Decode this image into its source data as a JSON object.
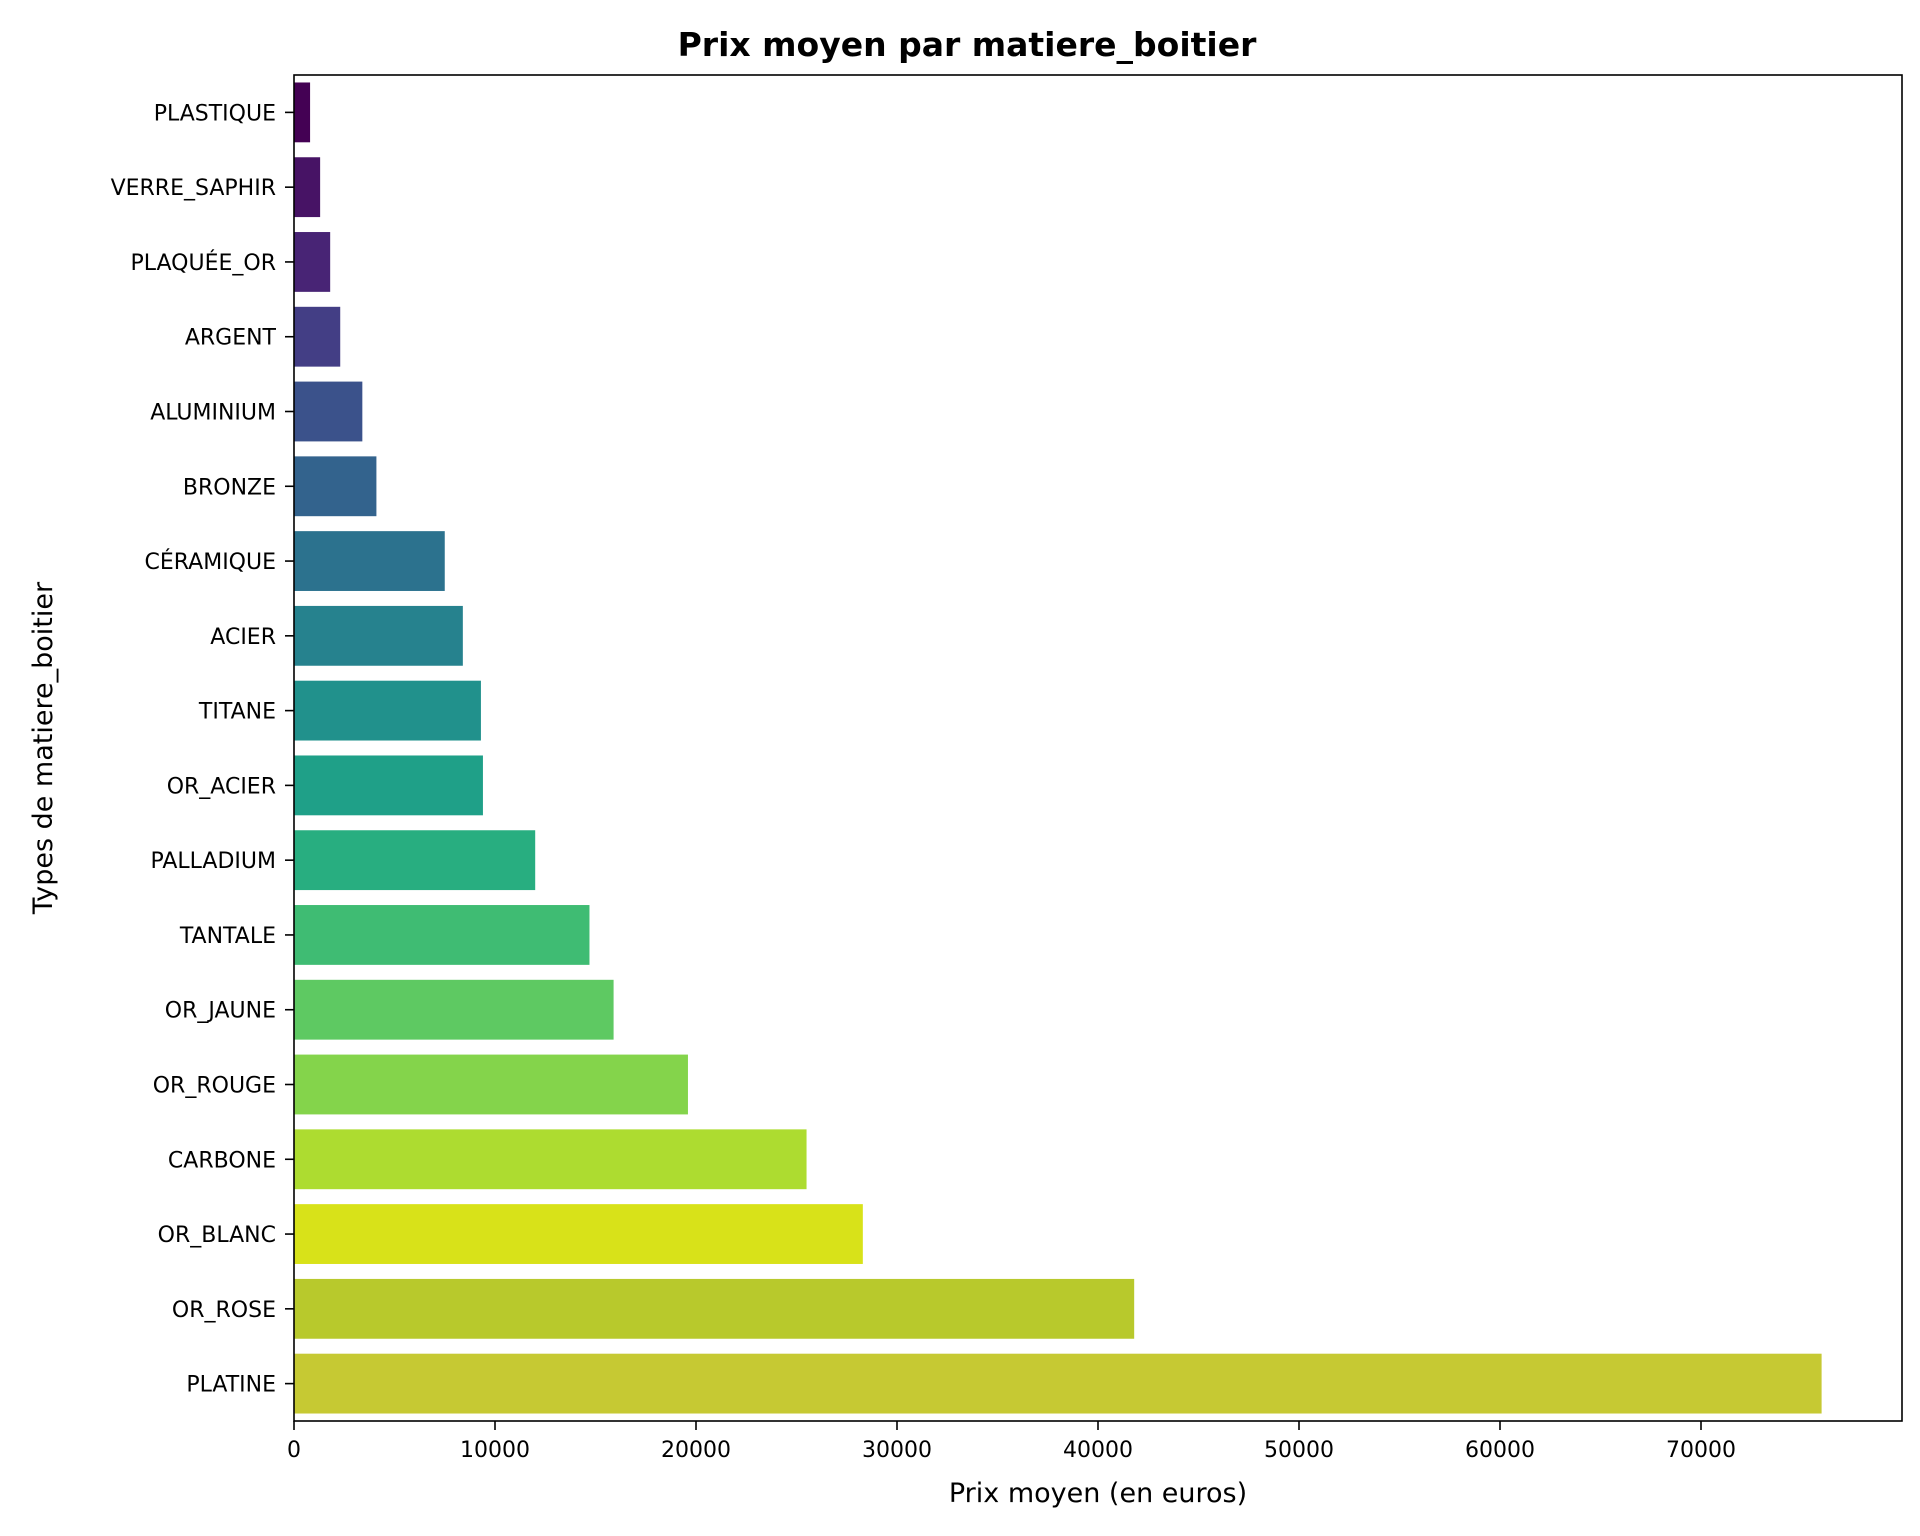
{
  "chart_data": {
    "type": "bar",
    "orientation": "horizontal",
    "title": "Prix moyen par matiere_boitier",
    "xlabel": "Prix moyen (en euros)",
    "ylabel": "Types de matiere_boitier",
    "xlim": [
      0,
      80000
    ],
    "xticks": [
      0,
      10000,
      20000,
      30000,
      40000,
      50000,
      60000,
      70000
    ],
    "grid": false,
    "categories": [
      "PLASTIQUE",
      "VERRE_SAPHIR",
      "PLAQUÉE_OR",
      "ARGENT",
      "ALUMINIUM",
      "BRONZE",
      "CÉRAMIQUE",
      "ACIER",
      "TITANE",
      "OR_ACIER",
      "PALLADIUM",
      "TANTALE",
      "OR_JAUNE",
      "OR_ROUGE",
      "CARBONE",
      "OR_BLANC",
      "OR_ROSE",
      "PLATINE"
    ],
    "values": [
      800,
      1300,
      1800,
      2300,
      3400,
      4100,
      7500,
      8400,
      9300,
      9400,
      12000,
      14700,
      15900,
      19600,
      25500,
      28300,
      41800,
      76000
    ],
    "colors": [
      "#440154",
      "#471365",
      "#482475",
      "#433e85",
      "#3b528b",
      "#33638d",
      "#2c728e",
      "#26828e",
      "#21918c",
      "#1fa088",
      "#28ae80",
      "#3fbc73",
      "#5ec962",
      "#84d44b",
      "#addc30",
      "#d8e219",
      "#b8c92c",
      "#c6c933"
    ]
  }
}
